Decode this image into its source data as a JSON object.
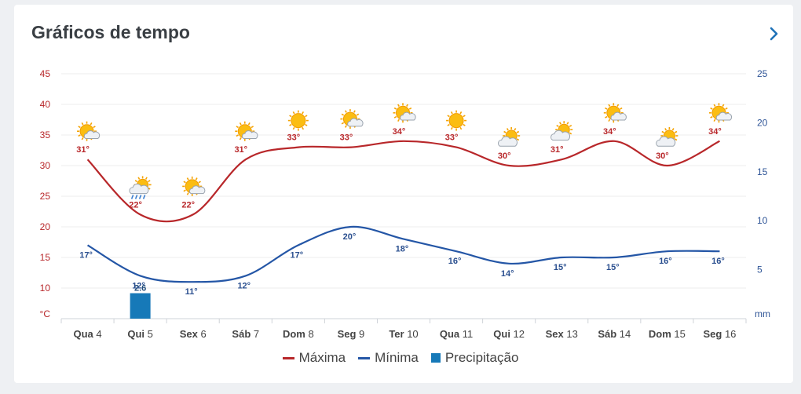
{
  "header": {
    "title": "Gráficos de tempo"
  },
  "colors": {
    "max": "#b8272a",
    "min": "#2456a6",
    "precip": "#1679b8",
    "max_label": "#b8272a",
    "min_label": "#2a4f8f",
    "axis_left": "#b8272a",
    "axis_right": "#2f5597"
  },
  "chart_data": {
    "type": "line",
    "categories": [
      "Qua 4",
      "Qui 5",
      "Sex 6",
      "Sáb 7",
      "Dom 8",
      "Seg 9",
      "Ter 10",
      "Qua 11",
      "Qui 12",
      "Sex 13",
      "Sáb 14",
      "Dom 15",
      "Seg 16"
    ],
    "series": [
      {
        "name": "Máxima",
        "values": [
          31,
          22,
          22,
          31,
          33,
          33,
          34,
          33,
          30,
          31,
          34,
          30,
          34
        ],
        "labels": [
          "31°",
          "22°",
          "22°",
          "31°",
          "33°",
          "33°",
          "34°",
          "33°",
          "30°",
          "31°",
          "34°",
          "30°",
          "34°"
        ]
      },
      {
        "name": "Mínima",
        "values": [
          17,
          12,
          11,
          12,
          17,
          20,
          18,
          16,
          14,
          15,
          15,
          16,
          16
        ],
        "labels": [
          "17°",
          "12°",
          "11°",
          "12°",
          "17°",
          "20°",
          "18°",
          "16°",
          "14°",
          "15°",
          "15°",
          "16°",
          "16°"
        ]
      },
      {
        "name": "Precipitação",
        "type": "bar",
        "axis": "right",
        "values": [
          0,
          2.6,
          0,
          0,
          0,
          0,
          0,
          0,
          0,
          0,
          0,
          0,
          0
        ],
        "labels": [
          "",
          "2.6",
          "",
          "",
          "",
          "",
          "",
          "",
          "",
          "",
          "",
          "",
          ""
        ]
      }
    ],
    "weather_icons": [
      "sun-cloud",
      "rain-cloud",
      "sun-cloud",
      "sun-cloud",
      "sun",
      "sun-cloud",
      "sun-cloud",
      "sun",
      "cloud-sun",
      "cloud-sun",
      "sun-cloud",
      "cloud-sun",
      "sun-cloud"
    ],
    "y_left": {
      "unit": "°C",
      "ticks": [
        "10",
        "15",
        "20",
        "25",
        "30",
        "35",
        "40",
        "45"
      ],
      "ylim": [
        5,
        45
      ]
    },
    "y_right": {
      "unit": "mm",
      "ticks": [
        "5",
        "10",
        "15",
        "20",
        "25"
      ],
      "ylim": [
        0,
        25
      ]
    },
    "grid": true,
    "legend": "bottom"
  }
}
